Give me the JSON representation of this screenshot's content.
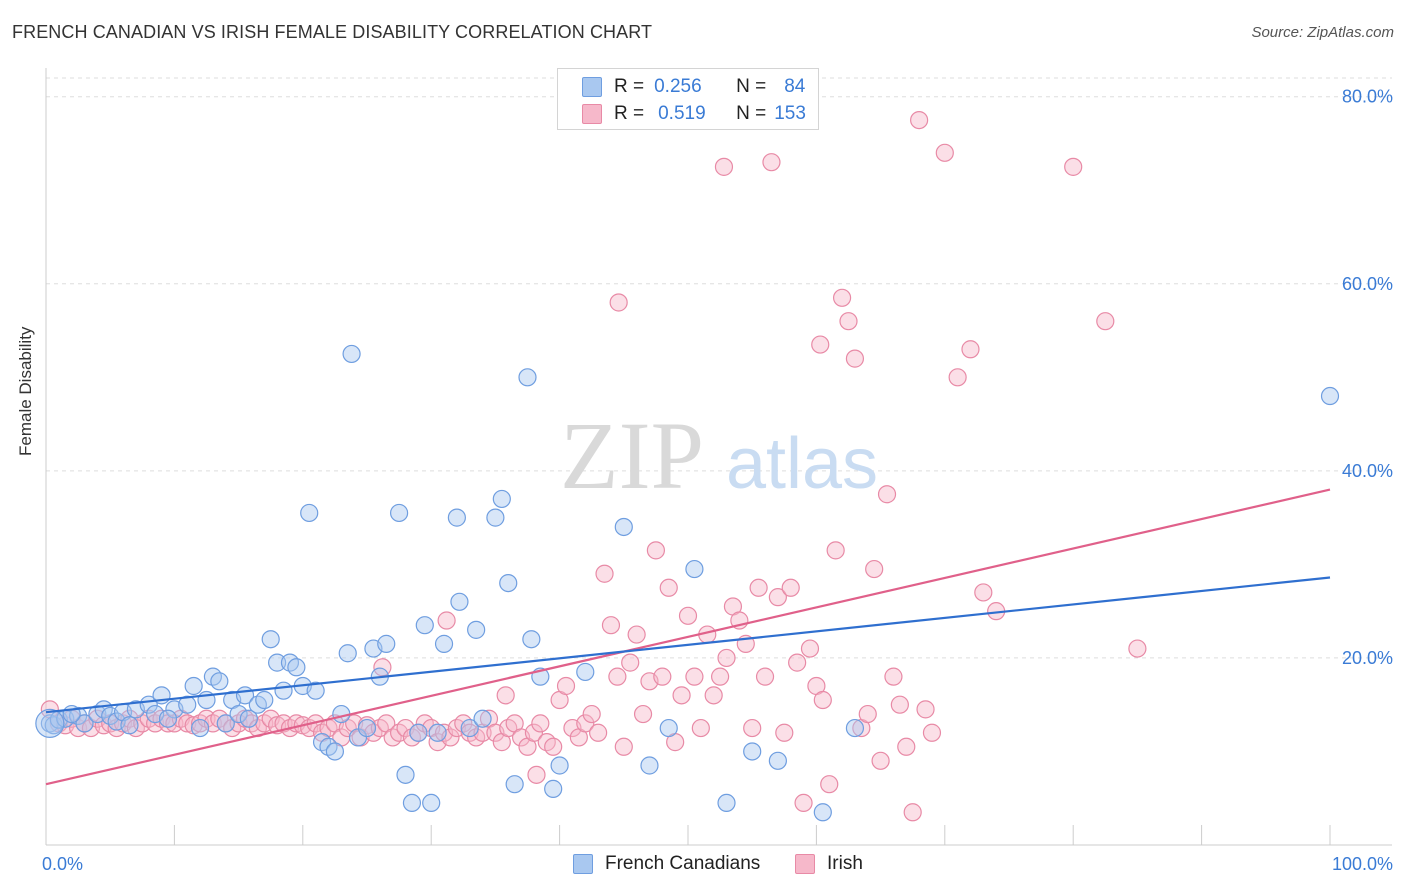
{
  "title": "FRENCH CANADIAN VS IRISH FEMALE DISABILITY CORRELATION CHART",
  "source": "Source: ZipAtlas.com",
  "colors": {
    "blue_fill": "#a9c8f0",
    "blue_stroke": "#6f9ee0",
    "blue_line": "#2f6fcf",
    "pink_fill": "#f6b8ca",
    "pink_stroke": "#e88aa6",
    "pink_line": "#e0608a",
    "tick_label": "#3a7bd5",
    "grid": "#dddddd"
  },
  "legend": {
    "rows": [
      {
        "r_label": "R =",
        "r_value": "0.256",
        "n_label": "N =",
        "n_value": "84"
      },
      {
        "r_label": "R =",
        "r_value": "0.519",
        "n_label": "N =",
        "n_value": "153"
      }
    ]
  },
  "watermark": {
    "zip": "ZIP",
    "atlas": "atlas"
  },
  "chart_data": {
    "type": "scatter",
    "title": "FRENCH CANADIAN VS IRISH FEMALE DISABILITY CORRELATION CHART",
    "xlabel": "",
    "ylabel": "Female Disability",
    "xlim": [
      0,
      100
    ],
    "ylim": [
      0,
      82
    ],
    "x_tick_labels": [
      {
        "value": 0,
        "label": "0.0%"
      },
      {
        "value": 100,
        "label": "100.0%"
      }
    ],
    "y_tick_labels": [
      {
        "value": 20,
        "label": "20.0%"
      },
      {
        "value": 40,
        "label": "40.0%"
      },
      {
        "value": 60,
        "label": "60.0%"
      },
      {
        "value": 80,
        "label": "80.0%"
      }
    ],
    "grid": true,
    "legend_position": "top-center",
    "series": [
      {
        "name": "French Canadians",
        "color": "blue",
        "trend": {
          "x": [
            0,
            100
          ],
          "y": [
            14.2,
            28.6
          ]
        },
        "points": [
          [
            0.3,
            13.0
          ],
          [
            0.6,
            12.8
          ],
          [
            1.0,
            13.4
          ],
          [
            1.5,
            13.5
          ],
          [
            2.5,
            13.8
          ],
          [
            3.0,
            13.0
          ],
          [
            4.0,
            14.0
          ],
          [
            4.5,
            14.5
          ],
          [
            5.0,
            13.8
          ],
          [
            5.5,
            13.2
          ],
          [
            6.0,
            14.2
          ],
          [
            7.0,
            14.5
          ],
          [
            8.0,
            15.0
          ],
          [
            8.5,
            14.0
          ],
          [
            9.0,
            16.0
          ],
          [
            10.0,
            14.5
          ],
          [
            11.0,
            15.0
          ],
          [
            11.5,
            17.0
          ],
          [
            12.0,
            12.5
          ],
          [
            12.5,
            15.5
          ],
          [
            13.0,
            18.0
          ],
          [
            13.5,
            17.5
          ],
          [
            14.0,
            13.0
          ],
          [
            14.5,
            15.5
          ],
          [
            15.0,
            14.0
          ],
          [
            15.5,
            16.0
          ],
          [
            16.5,
            15.0
          ],
          [
            17.0,
            15.5
          ],
          [
            17.5,
            22.0
          ],
          [
            18.0,
            19.5
          ],
          [
            18.5,
            16.5
          ],
          [
            19.0,
            19.5
          ],
          [
            19.5,
            19.0
          ],
          [
            20.0,
            17.0
          ],
          [
            20.5,
            35.5
          ],
          [
            21.0,
            16.5
          ],
          [
            21.5,
            11.0
          ],
          [
            22.0,
            10.5
          ],
          [
            22.5,
            10.0
          ],
          [
            23.0,
            14.0
          ],
          [
            23.5,
            20.5
          ],
          [
            23.8,
            52.5
          ],
          [
            24.3,
            11.5
          ],
          [
            25.0,
            12.5
          ],
          [
            25.5,
            21.0
          ],
          [
            26.0,
            18.0
          ],
          [
            26.5,
            21.5
          ],
          [
            27.5,
            35.5
          ],
          [
            28.0,
            7.5
          ],
          [
            28.5,
            4.5
          ],
          [
            29.0,
            12.0
          ],
          [
            29.5,
            23.5
          ],
          [
            30.0,
            4.5
          ],
          [
            30.5,
            12.0
          ],
          [
            31.0,
            21.5
          ],
          [
            32.0,
            35.0
          ],
          [
            32.2,
            26.0
          ],
          [
            33.0,
            12.5
          ],
          [
            33.5,
            23.0
          ],
          [
            34.0,
            13.5
          ],
          [
            35.0,
            35.0
          ],
          [
            35.5,
            37.0
          ],
          [
            36.0,
            28.0
          ],
          [
            36.5,
            6.5
          ],
          [
            37.5,
            50.0
          ],
          [
            37.8,
            22.0
          ],
          [
            38.5,
            18.0
          ],
          [
            39.5,
            6.0
          ],
          [
            40.0,
            8.5
          ],
          [
            42.0,
            18.5
          ],
          [
            45.0,
            34.0
          ],
          [
            47.0,
            8.5
          ],
          [
            48.5,
            12.5
          ],
          [
            50.5,
            29.5
          ],
          [
            53.0,
            4.5
          ],
          [
            55.0,
            10.0
          ],
          [
            57.0,
            9.0
          ],
          [
            60.5,
            3.5
          ],
          [
            63.0,
            12.5
          ],
          [
            100.0,
            48.0
          ],
          [
            2.0,
            14.0
          ],
          [
            6.5,
            12.8
          ],
          [
            9.5,
            13.5
          ],
          [
            15.8,
            13.5
          ]
        ]
      },
      {
        "name": "Irish",
        "color": "pink",
        "trend": {
          "x": [
            0,
            100
          ],
          "y": [
            6.5,
            38.0
          ]
        },
        "points": [
          [
            0.3,
            14.5
          ],
          [
            1.0,
            13.0
          ],
          [
            1.5,
            12.8
          ],
          [
            2.0,
            13.5
          ],
          [
            2.5,
            12.5
          ],
          [
            3.0,
            13.0
          ],
          [
            3.5,
            12.5
          ],
          [
            4.0,
            13.5
          ],
          [
            4.5,
            12.8
          ],
          [
            5.0,
            13.0
          ],
          [
            5.5,
            12.5
          ],
          [
            6.0,
            13.0
          ],
          [
            6.5,
            13.5
          ],
          [
            7.0,
            12.5
          ],
          [
            7.5,
            13.0
          ],
          [
            8.0,
            13.5
          ],
          [
            8.5,
            13.0
          ],
          [
            9.0,
            13.5
          ],
          [
            9.5,
            13.0
          ],
          [
            10.0,
            13.0
          ],
          [
            10.5,
            13.5
          ],
          [
            11.0,
            13.0
          ],
          [
            11.5,
            12.8
          ],
          [
            12.0,
            13.0
          ],
          [
            12.5,
            13.5
          ],
          [
            13.0,
            13.0
          ],
          [
            13.5,
            13.5
          ],
          [
            14.0,
            13.0
          ],
          [
            14.5,
            12.5
          ],
          [
            15.0,
            13.0
          ],
          [
            15.5,
            13.5
          ],
          [
            16.0,
            13.0
          ],
          [
            16.5,
            12.5
          ],
          [
            17.0,
            13.0
          ],
          [
            17.5,
            13.5
          ],
          [
            18.0,
            12.8
          ],
          [
            18.5,
            13.0
          ],
          [
            19.0,
            12.5
          ],
          [
            19.5,
            13.0
          ],
          [
            20.0,
            12.8
          ],
          [
            20.5,
            12.5
          ],
          [
            21.0,
            13.0
          ],
          [
            21.5,
            12.0
          ],
          [
            22.0,
            12.5
          ],
          [
            22.5,
            13.0
          ],
          [
            23.0,
            11.5
          ],
          [
            23.5,
            12.5
          ],
          [
            24.0,
            13.0
          ],
          [
            24.5,
            11.5
          ],
          [
            25.0,
            12.8
          ],
          [
            25.5,
            12.0
          ],
          [
            26.0,
            12.5
          ],
          [
            26.5,
            13.0
          ],
          [
            27.0,
            11.5
          ],
          [
            27.5,
            12.0
          ],
          [
            28.0,
            12.5
          ],
          [
            28.5,
            11.5
          ],
          [
            29.0,
            12.0
          ],
          [
            29.5,
            13.0
          ],
          [
            30.0,
            12.5
          ],
          [
            30.5,
            11.0
          ],
          [
            31.0,
            12.0
          ],
          [
            31.5,
            11.5
          ],
          [
            32.0,
            12.5
          ],
          [
            32.5,
            13.0
          ],
          [
            33.0,
            12.0
          ],
          [
            33.5,
            11.5
          ],
          [
            34.0,
            12.0
          ],
          [
            34.5,
            13.5
          ],
          [
            35.0,
            12.0
          ],
          [
            35.5,
            11.0
          ],
          [
            36.0,
            12.5
          ],
          [
            36.5,
            13.0
          ],
          [
            37.0,
            11.5
          ],
          [
            37.5,
            10.5
          ],
          [
            38.0,
            12.0
          ],
          [
            38.5,
            13.0
          ],
          [
            39.0,
            11.0
          ],
          [
            39.5,
            10.5
          ],
          [
            40.0,
            15.5
          ],
          [
            40.5,
            17.0
          ],
          [
            41.0,
            12.5
          ],
          [
            41.5,
            11.5
          ],
          [
            42.0,
            13.0
          ],
          [
            42.5,
            14.0
          ],
          [
            43.0,
            12.0
          ],
          [
            43.5,
            29.0
          ],
          [
            44.0,
            23.5
          ],
          [
            44.5,
            18.0
          ],
          [
            45.0,
            10.5
          ],
          [
            45.5,
            19.5
          ],
          [
            46.0,
            22.5
          ],
          [
            46.5,
            14.0
          ],
          [
            47.0,
            17.5
          ],
          [
            47.5,
            31.5
          ],
          [
            48.0,
            18.0
          ],
          [
            48.5,
            27.5
          ],
          [
            49.0,
            11.0
          ],
          [
            49.5,
            16.0
          ],
          [
            50.0,
            24.5
          ],
          [
            50.5,
            18.0
          ],
          [
            51.0,
            12.5
          ],
          [
            51.5,
            22.5
          ],
          [
            52.0,
            16.0
          ],
          [
            52.5,
            18.0
          ],
          [
            53.0,
            20.0
          ],
          [
            53.5,
            25.5
          ],
          [
            54.0,
            24.0
          ],
          [
            54.5,
            21.5
          ],
          [
            55.0,
            12.5
          ],
          [
            55.5,
            27.5
          ],
          [
            56.0,
            18.0
          ],
          [
            56.5,
            73.0
          ],
          [
            57.0,
            26.5
          ],
          [
            57.5,
            12.0
          ],
          [
            58.0,
            27.5
          ],
          [
            58.5,
            19.5
          ],
          [
            59.0,
            4.5
          ],
          [
            59.5,
            21.0
          ],
          [
            60.0,
            17.0
          ],
          [
            60.5,
            15.5
          ],
          [
            61.0,
            6.5
          ],
          [
            61.5,
            31.5
          ],
          [
            62.0,
            58.5
          ],
          [
            62.5,
            56.0
          ],
          [
            63.0,
            52.0
          ],
          [
            63.5,
            12.5
          ],
          [
            64.0,
            14.0
          ],
          [
            64.5,
            29.5
          ],
          [
            65.0,
            9.0
          ],
          [
            65.5,
            37.5
          ],
          [
            66.0,
            18.0
          ],
          [
            66.5,
            15.0
          ],
          [
            67.0,
            10.5
          ],
          [
            67.5,
            3.5
          ],
          [
            68.0,
            77.5
          ],
          [
            68.5,
            14.5
          ],
          [
            69.0,
            12.0
          ],
          [
            70.0,
            74.0
          ],
          [
            71.0,
            50.0
          ],
          [
            72.0,
            53.0
          ],
          [
            73.0,
            27.0
          ],
          [
            74.0,
            25.0
          ],
          [
            80.0,
            72.5
          ],
          [
            82.5,
            56.0
          ],
          [
            85.0,
            21.0
          ],
          [
            60.3,
            53.5
          ],
          [
            44.6,
            58.0
          ],
          [
            52.8,
            72.5
          ],
          [
            31.2,
            24.0
          ],
          [
            26.2,
            19.0
          ],
          [
            38.2,
            7.5
          ],
          [
            35.8,
            16.0
          ]
        ]
      }
    ]
  }
}
